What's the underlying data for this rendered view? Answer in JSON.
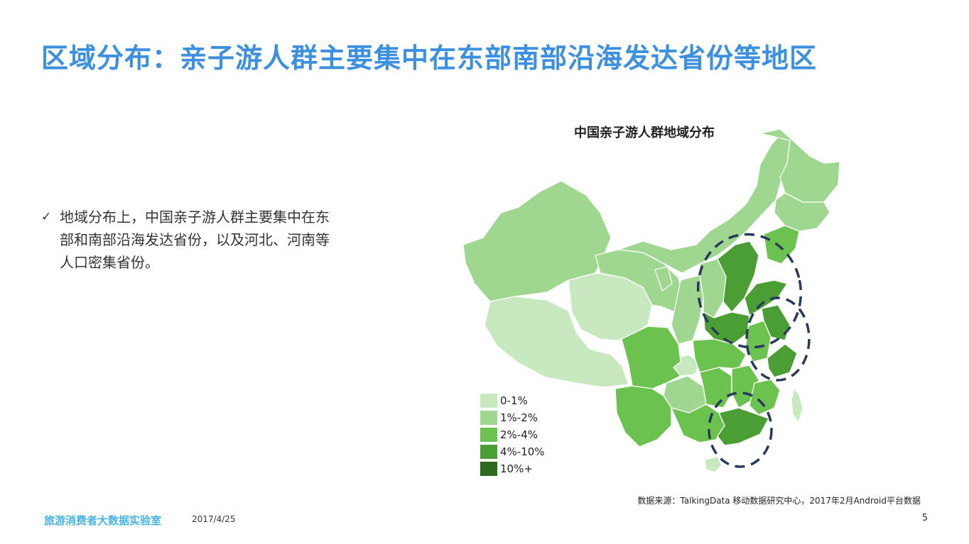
{
  "slide": {
    "title": "区域分布：亲子游人群主要集中在东部南部沿海发达省份等地区",
    "bullet": {
      "icon": "check-icon",
      "text": "地域分布上，中国亲子游人群主要集中在东部和南部沿海发达省份，以及河北、河南等人口密集省份。"
    }
  },
  "map": {
    "title": "中国亲子游人群地域分布",
    "colors": {
      "tier_0_1": "#c8e8c0",
      "tier_1_2": "#9fd791",
      "tier_2_4": "#6cc24f",
      "tier_4_10": "#4a9e34",
      "tier_10_plus": "#2b6a1f",
      "highlight_ring": "#2a3a5c"
    },
    "legend": [
      {
        "label": "0-1%",
        "color": "#c8e8c0"
      },
      {
        "label": "1%-2%",
        "color": "#9fd791"
      },
      {
        "label": "2%-4%",
        "color": "#6cc24f"
      },
      {
        "label": "4%-10%",
        "color": "#4a9e34"
      },
      {
        "label": "10%+",
        "color": "#2b6a1f"
      }
    ]
  },
  "footer": {
    "source": "数据来源：TalkingData 移动数据研究中心，2017年2月Android平台数据",
    "brand": "旅游消费者大数据实验室",
    "date": "2017/4/25",
    "page": "5"
  }
}
